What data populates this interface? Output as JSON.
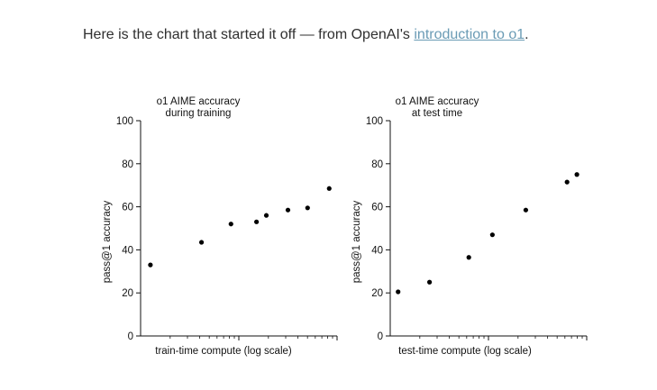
{
  "article": {
    "intro_before": "Here is the chart that started it off — from OpenAI's ",
    "intro_link": "introduction to o1",
    "intro_after": ".",
    "link_color": "#6a9bb5"
  },
  "chart_data": [
    {
      "type": "scatter",
      "title": [
        "o1 AIME accuracy",
        "during training"
      ],
      "xlabel": "train-time compute (log scale)",
      "ylabel": "pass@1 accuracy",
      "ylim": [
        0,
        100
      ],
      "yticks": [
        0,
        20,
        40,
        60,
        80,
        100
      ],
      "xscale": "log",
      "xlim_log10": [
        0,
        1
      ],
      "x_log10": [
        0.05,
        0.31,
        0.46,
        0.59,
        0.64,
        0.75,
        0.85,
        0.96
      ],
      "y": [
        33,
        43.5,
        52,
        53,
        56,
        58.5,
        59.5,
        68.5
      ]
    },
    {
      "type": "scatter",
      "title": [
        "o1 AIME accuracy",
        "at test time"
      ],
      "xlabel": "test-time compute (log scale)",
      "ylabel": "pass@1 accuracy",
      "ylim": [
        0,
        100
      ],
      "yticks": [
        0,
        20,
        40,
        60,
        80,
        100
      ],
      "xscale": "log",
      "xlim_log10": [
        0,
        1
      ],
      "x_log10": [
        0.04,
        0.2,
        0.4,
        0.52,
        0.69,
        0.9,
        0.95
      ],
      "y": [
        20.5,
        25,
        36.5,
        47,
        58.5,
        71.5,
        75
      ]
    }
  ],
  "colors": {
    "points": "#000000",
    "axis": "#111111"
  }
}
